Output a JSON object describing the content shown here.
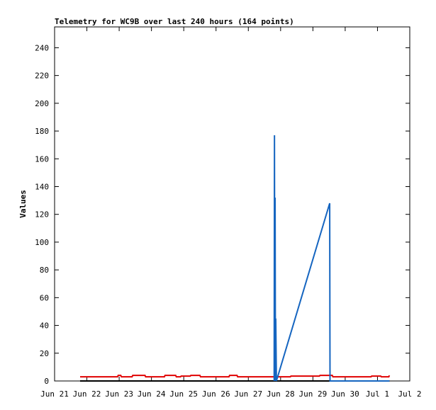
{
  "chart_data": {
    "type": "line",
    "title": "Telemetry for WC9B over last 240 hours (164 points)",
    "y_label": "Values",
    "xlim": [
      0,
      11
    ],
    "xticks": [
      {
        "value": 0,
        "label": "Jun 21"
      },
      {
        "value": 1,
        "label": "Jun 22"
      },
      {
        "value": 2,
        "label": "Jun 23"
      },
      {
        "value": 3,
        "label": "Jun 24"
      },
      {
        "value": 4,
        "label": "Jun 25"
      },
      {
        "value": 5,
        "label": "Jun 26"
      },
      {
        "value": 6,
        "label": "Jun 27"
      },
      {
        "value": 7,
        "label": "Jun 28"
      },
      {
        "value": 8,
        "label": "Jun 29"
      },
      {
        "value": 9,
        "label": "Jun 30"
      },
      {
        "value": 10,
        "label": "Jul 1"
      },
      {
        "value": 11,
        "label": "Jul 2"
      }
    ],
    "ylim": [
      0,
      255
    ],
    "yticks": [
      0,
      20,
      40,
      60,
      80,
      100,
      120,
      140,
      160,
      180,
      200,
      220,
      240
    ],
    "series": [
      {
        "color": "#000000",
        "x": [
          0.79,
          10.37
        ],
        "values": [
          0,
          0
        ]
      },
      {
        "color": "#e00000",
        "x": [
          0.79,
          1.95,
          1.97,
          2.05,
          2.07,
          2.4,
          2.42,
          2.8,
          2.82,
          3.4,
          3.42,
          3.75,
          3.77,
          3.9,
          3.92,
          4.2,
          4.22,
          4.5,
          4.52,
          5.4,
          5.42,
          5.65,
          5.67,
          6.8,
          7.3,
          7.32,
          8.2,
          8.22,
          8.6,
          8.62,
          9.8,
          9.82,
          10.1,
          10.12,
          10.35,
          10.37
        ],
        "values": [
          3,
          3,
          4,
          4,
          3,
          3,
          4,
          4,
          3,
          3,
          4,
          4,
          3,
          3,
          3.5,
          3.5,
          4,
          4,
          3,
          3,
          4,
          4,
          3,
          3,
          3,
          3.5,
          3.5,
          4,
          4,
          3,
          3,
          3.5,
          3.5,
          3,
          3,
          4
        ]
      },
      {
        "color": "#1565c0",
        "x": [
          6.8,
          6.81,
          6.82,
          6.83,
          6.84,
          6.85,
          6.87,
          8.52,
          8.53,
          10.37
        ],
        "values": [
          0,
          177,
          0,
          132,
          0,
          45,
          0,
          128,
          0,
          0
        ]
      }
    ]
  }
}
